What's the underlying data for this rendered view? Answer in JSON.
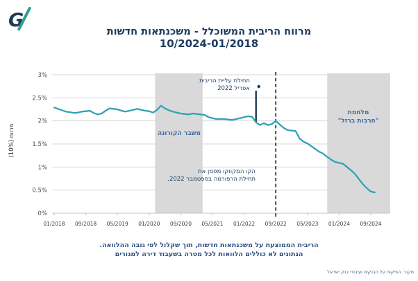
{
  "logo": {
    "letter": "G"
  },
  "title": {
    "line1": "מרווח הריבית המשוכלל - משכנתאות חדשות",
    "line2": "10/2024-01/2018"
  },
  "chart_data": {
    "type": "line",
    "title": "מרווח הריבית המשוכלל - משכנתאות חדשות 01/2018-10/2024",
    "ylabel": "מרווח (10%)",
    "ylim": [
      0,
      3
    ],
    "yticks": [
      "3%",
      "2.5%",
      "2%",
      "1.5%",
      "1%",
      "0.5%",
      "0%"
    ],
    "ytick_values": [
      3,
      2.5,
      2,
      1.5,
      1,
      0.5,
      0
    ],
    "x_start": "01/2018",
    "x_end": "10/2024",
    "frequency": "monthly",
    "x_tick_labels": [
      "01/2018",
      "09/2018",
      "05/2019",
      "01/2020",
      "09/2020",
      "05/2021",
      "01/2022",
      "09/2022",
      "05/2023",
      "01/2024",
      "09/2024"
    ],
    "x_tick_indices": [
      0,
      8,
      16,
      24,
      32,
      40,
      48,
      56,
      64,
      72,
      80
    ],
    "grid": "horizontal",
    "legend": "none",
    "series": [
      {
        "name": "מרווח הריבית המשוכלל על משכנתאות חדשות",
        "color": "#31a2b4",
        "values": [
          2.29,
          2.26,
          2.23,
          2.2,
          2.19,
          2.17,
          2.18,
          2.2,
          2.21,
          2.22,
          2.17,
          2.14,
          2.16,
          2.22,
          2.27,
          2.26,
          2.25,
          2.22,
          2.2,
          2.22,
          2.24,
          2.26,
          2.24,
          2.22,
          2.21,
          2.18,
          2.24,
          2.33,
          2.27,
          2.23,
          2.2,
          2.18,
          2.16,
          2.15,
          2.14,
          2.16,
          2.15,
          2.14,
          2.13,
          2.08,
          2.06,
          2.04,
          2.04,
          2.04,
          2.03,
          2.02,
          2.04,
          2.06,
          2.08,
          2.1,
          2.09,
          1.97,
          1.91,
          1.95,
          1.91,
          1.93,
          2.0,
          1.92,
          1.85,
          1.8,
          1.79,
          1.78,
          1.62,
          1.55,
          1.51,
          1.45,
          1.39,
          1.33,
          1.29,
          1.22,
          1.16,
          1.11,
          1.09,
          1.07,
          1.0,
          0.93,
          0.85,
          0.74,
          0.63,
          0.54,
          0.47,
          0.45
        ]
      }
    ],
    "bands": [
      {
        "label": "משבר הקורונה",
        "from": "03/2020",
        "to": "03/2021",
        "from_index": 25.5,
        "to_index": 37.5,
        "color": "#d9d9d9"
      },
      {
        "label": "מלחמת \"חרבות ברזל\"",
        "from": "10/2023",
        "to": "10/2024",
        "from_index": 69,
        "to_index": "end",
        "color": "#d9d9d9"
      }
    ],
    "dashed_line": {
      "index": 56,
      "date": "09/2022",
      "meaning": "תחילת הרפורמה"
    },
    "marker": {
      "index": 51,
      "date": "04/2022",
      "meaning": "תחילת עליית הריבית"
    }
  },
  "annotations": {
    "rate_rise_line1": "תחילת עליית הריבית",
    "rate_rise_line2": "אפריל 2022",
    "covid": "משבר הקורונה",
    "war_line1": "מלחמת",
    "war_line2": "\"חרבות ברזל\"",
    "reform_line1": "הקו המקווקו מסמן את",
    "reform_line2": "תחילת הרפורמה בספטמבר 2022."
  },
  "axis": {
    "ylabel": "מרווח (10%)"
  },
  "footer": {
    "line1": "הריבית הממוצעת על משכנתאות חדשות, תוך שקלול לפי גובה ההלוואה.",
    "line2": "הנתונים לא כוללים הלוואות לכל מטרה בשעבוד דירה למגורים"
  },
  "source": "מקור: הפיקוח על הבנקים ועיבודי בנק ישראל",
  "colors": {
    "line": "#31a2b4",
    "band": "#d9d9d9",
    "title": "#1c3c60",
    "band_label": "#3e6aa8",
    "annotation_text": "#1f3f63",
    "footer_text": "#2b4d86",
    "axis_text": "#4d4d4d",
    "dashed_line": "#1a1a1a",
    "marker_line": "#1e3a56",
    "logo_navy": "#203a54",
    "logo_teal": "#2fa08e"
  }
}
